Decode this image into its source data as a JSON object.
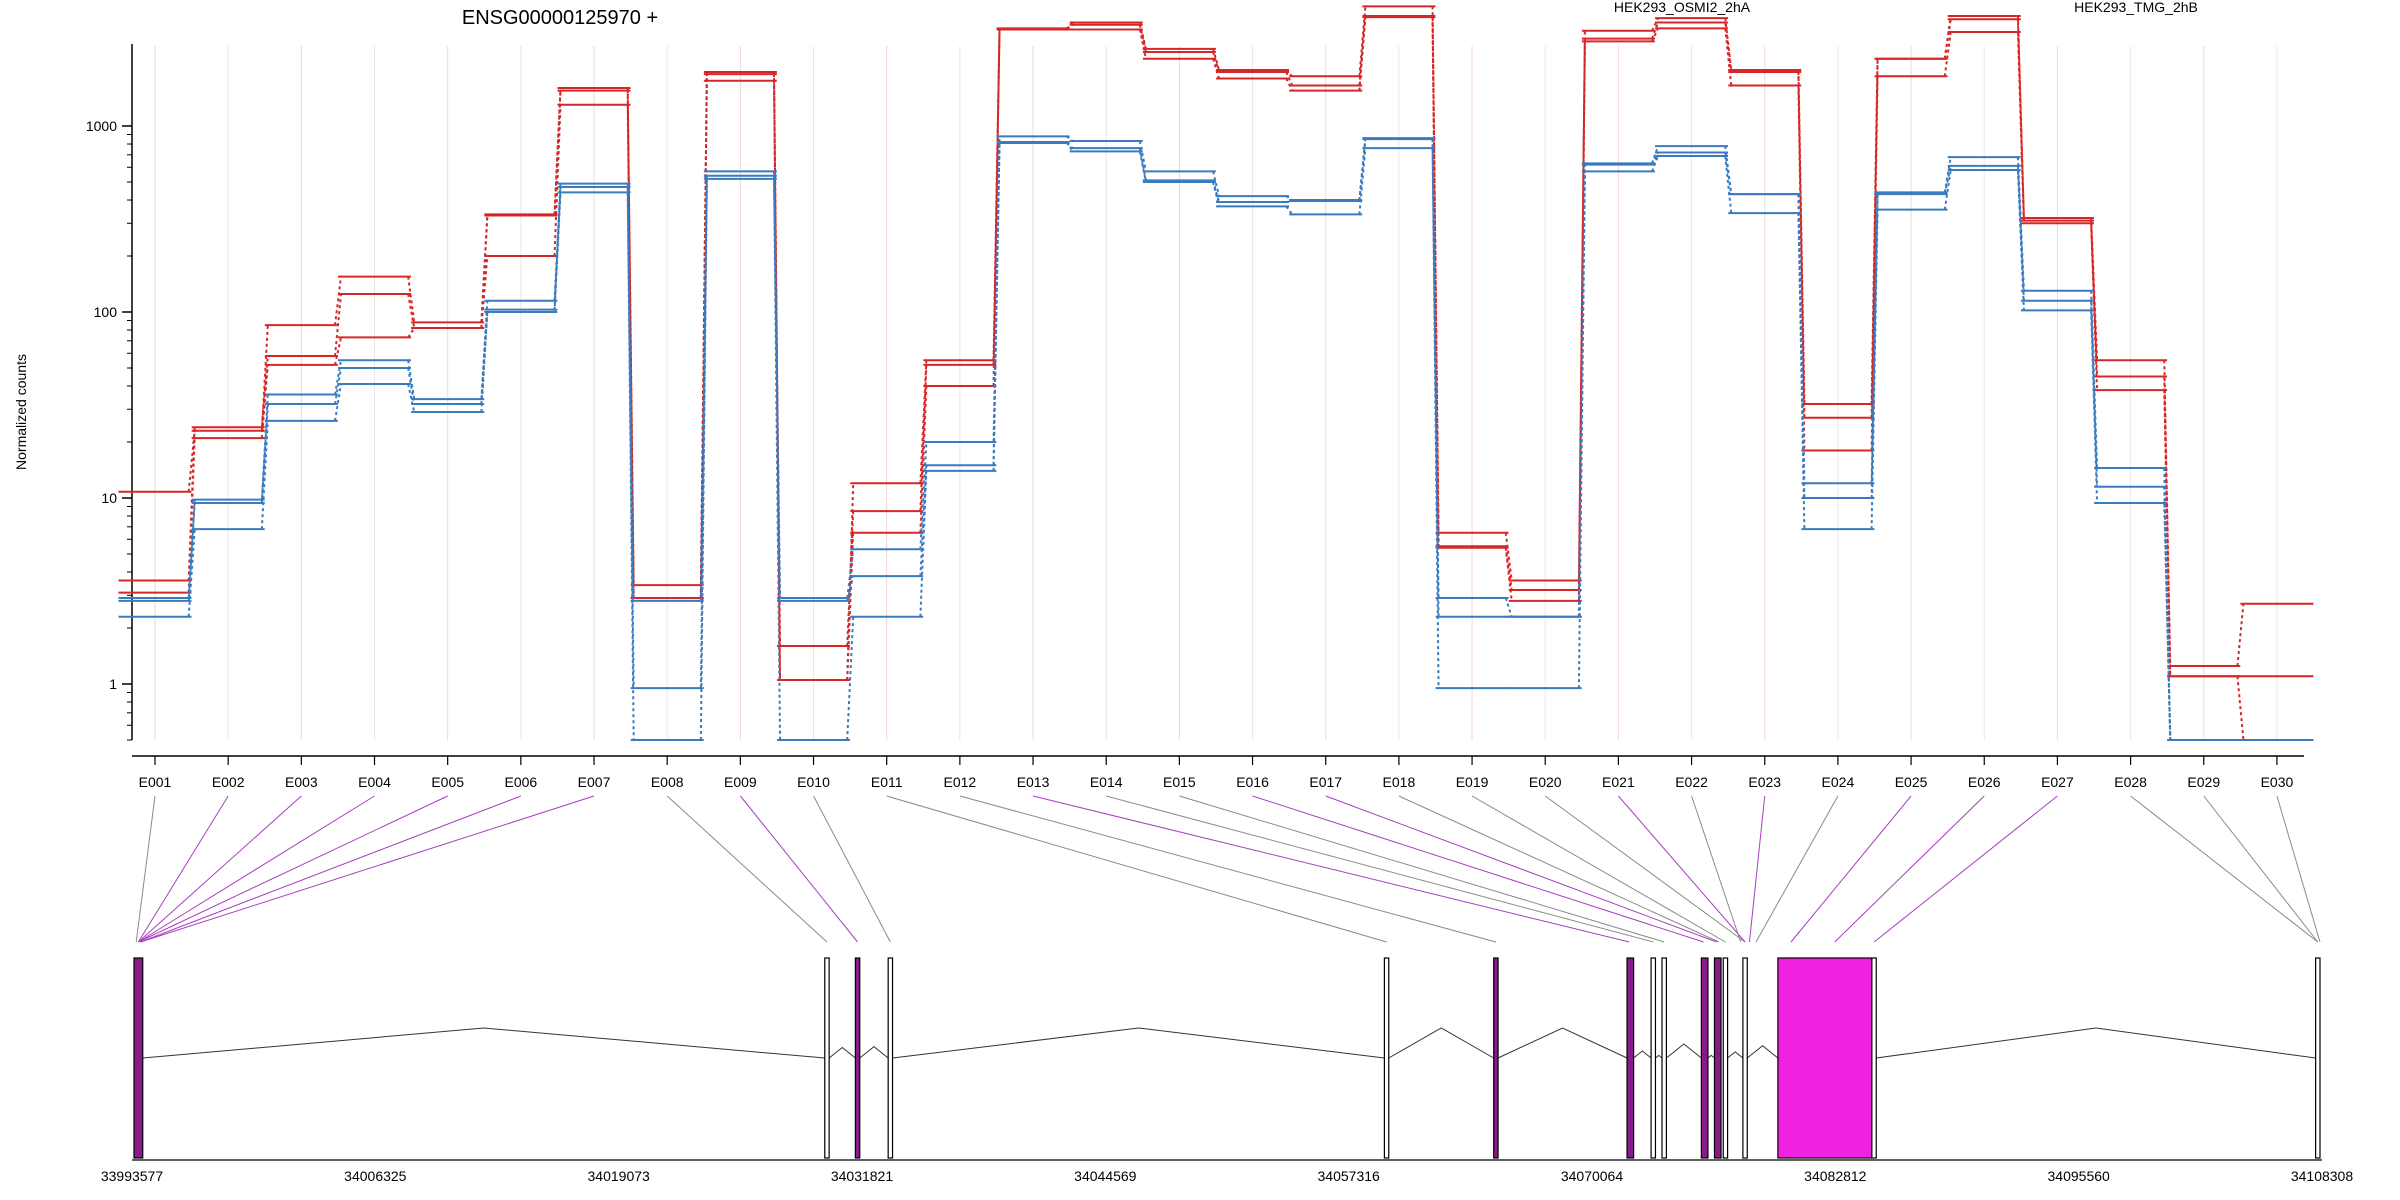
{
  "chart_data": {
    "type": "line",
    "title": "ENSG00000125970 +",
    "ylabel": "Normalized counts",
    "yscale": "log",
    "ylim": [
      0.5,
      6000
    ],
    "yticks": [
      "1",
      "10",
      "100",
      "1000"
    ],
    "grid": true,
    "legend_position": "top-right",
    "categories": [
      "E001",
      "E002",
      "E003",
      "E004",
      "E005",
      "E006",
      "E007",
      "E008",
      "E009",
      "E010",
      "E011",
      "E012",
      "E013",
      "E014",
      "E015",
      "E016",
      "E017",
      "E018",
      "E019",
      "E020",
      "E021",
      "E022",
      "E023",
      "E024",
      "E025",
      "E026",
      "E027",
      "E028",
      "E029",
      "E030"
    ],
    "groups": [
      {
        "name": "HEK293_OSMI2_2hA",
        "color": "#d62728",
        "series": [
          {
            "values": [
              10.8,
              23,
              85,
              155,
              88,
              335,
              1600,
              3.4,
              1950,
              1.05,
              12,
              55,
              3300,
              3600,
              2600,
              2000,
              1850,
              4400,
              6.5,
              3.6,
              3250,
              3800,
              2000,
              32,
              2300,
              3900,
              320,
              55,
              1.25,
              2.7
            ]
          },
          {
            "values": [
              3.6,
              24,
              58,
              125,
              82,
              330,
              1550,
              2.9,
              1900,
              1.6,
              8.5,
              52,
              3350,
              3500,
              2500,
              1950,
              1650,
              3900,
              5.5,
              3.2,
              2950,
              3600,
              1950,
              27,
              2300,
              3750,
              310,
              45,
              1.1,
              1.1
            ]
          },
          {
            "values": [
              3.1,
              21,
              52,
              73,
              82,
              200,
              1300,
              2.9,
              1750,
              1.05,
              6.5,
              40,
              3300,
              3300,
              2300,
              1800,
              1550,
              3850,
              5.4,
              2.8,
              2850,
              3350,
              1650,
              18,
              1850,
              3200,
              300,
              38,
              1.1,
              0.5
            ]
          }
        ]
      },
      {
        "name": "HEK293_TMG_2hB",
        "color": "#3a7bbf",
        "series": [
          {
            "values": [
              2.9,
              9.8,
              36,
              55,
              34,
              115,
              490,
              0.95,
              570,
              2.9,
              5.3,
              20,
              880,
              830,
              570,
              420,
              400,
              860,
              2.9,
              2.3,
              630,
              780,
              430,
              12,
              440,
              680,
              130,
              14.5,
              0.5,
              0.5
            ]
          },
          {
            "values": [
              2.8,
              9.4,
              32,
              50,
              32,
              103,
              470,
              2.8,
              540,
              2.8,
              3.8,
              15,
              810,
              760,
              510,
              390,
              395,
              850,
              2.3,
              2.3,
              620,
              720,
              430,
              10,
              430,
              610,
              115,
              11.5,
              0.5,
              0.5
            ]
          },
          {
            "values": [
              2.3,
              6.8,
              26,
              41,
              29,
              100,
              440,
              0.5,
              520,
              0.5,
              2.3,
              14,
              820,
              730,
              500,
              370,
              335,
              760,
              0.95,
              0.95,
              570,
              690,
              340,
              6.8,
              355,
              580,
              102,
              9.4,
              0.5,
              0.5
            ]
          }
        ]
      }
    ],
    "gene_model": {
      "coordinates": [
        "33993577",
        "34006325",
        "34019073",
        "34031821",
        "34044569",
        "34057316",
        "34070064",
        "34082812",
        "34095560",
        "34108308"
      ]
    }
  }
}
